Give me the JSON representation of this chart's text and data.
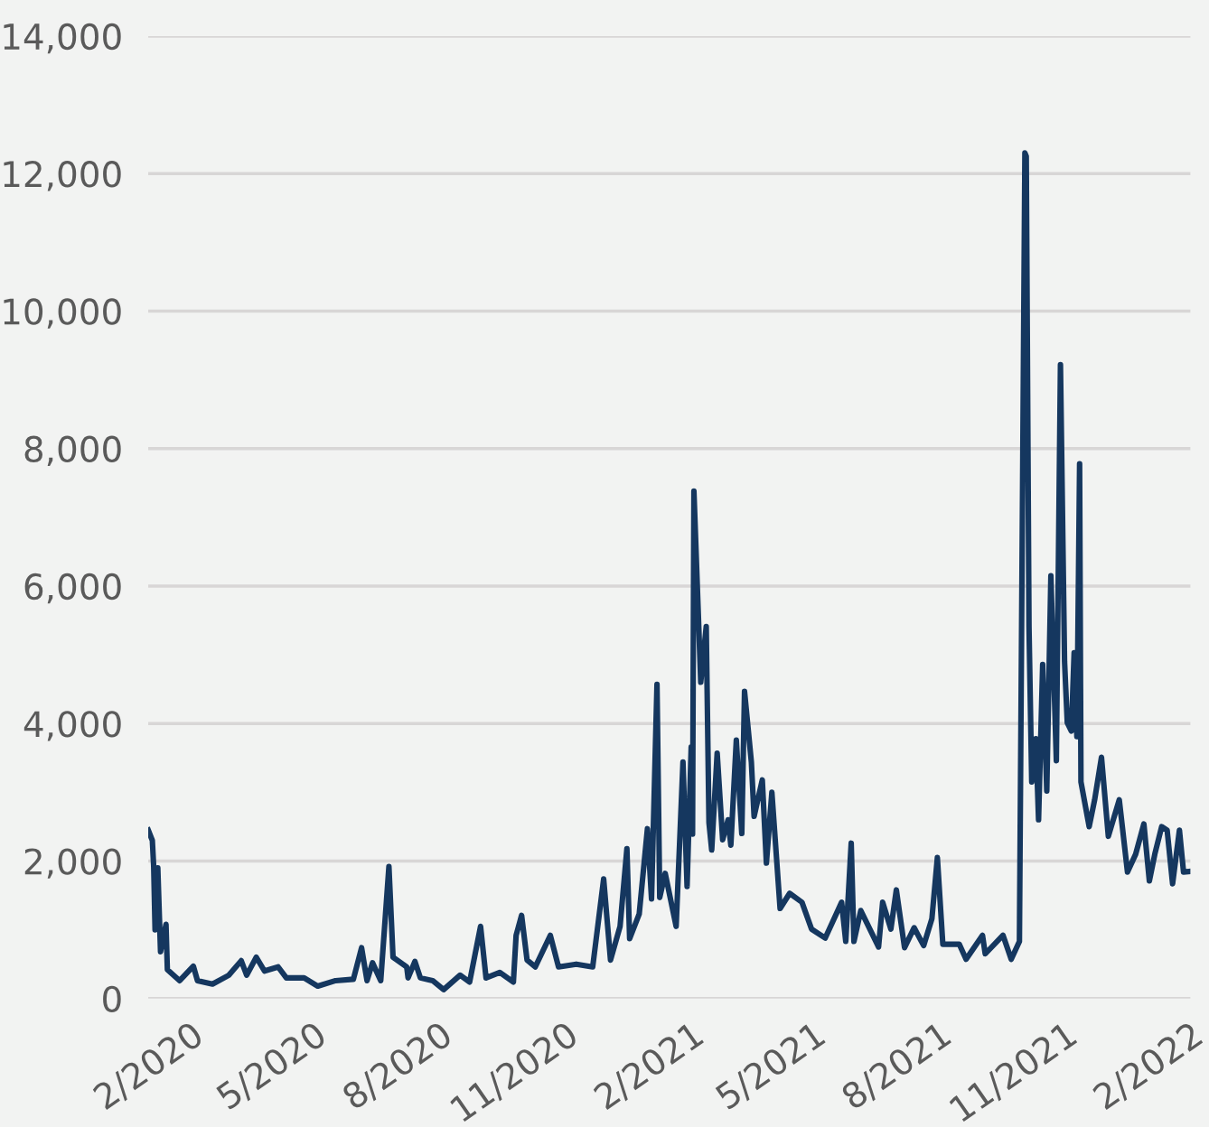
{
  "chart_data": {
    "type": "line",
    "x": [
      "2020-01-01",
      "2020-01-04",
      "2020-01-05",
      "2020-01-06",
      "2020-01-08",
      "2020-01-10",
      "2020-01-14",
      "2020-01-15",
      "2020-01-24",
      "2020-02-03",
      "2020-02-06",
      "2020-02-17",
      "2020-02-29",
      "2020-03-09",
      "2020-03-13",
      "2020-03-20",
      "2020-03-26",
      "2020-04-05",
      "2020-04-11",
      "2020-04-24",
      "2020-05-04",
      "2020-05-17",
      "2020-05-30",
      "2020-06-05",
      "2020-06-09",
      "2020-06-13",
      "2020-06-19",
      "2020-06-25",
      "2020-06-28",
      "2020-07-08",
      "2020-07-09",
      "2020-07-14",
      "2020-07-18",
      "2020-07-27",
      "2020-08-04",
      "2020-08-16",
      "2020-08-23",
      "2020-08-31",
      "2020-09-04",
      "2020-09-14",
      "2020-09-24",
      "2020-09-26",
      "2020-09-30",
      "2020-10-04",
      "2020-10-10",
      "2020-10-21",
      "2020-10-27",
      "2020-11-09",
      "2020-11-21",
      "2020-11-29",
      "2020-12-04",
      "2020-12-11",
      "2020-12-16",
      "2020-12-18",
      "2020-12-25",
      "2020-12-31",
      "2021-01-03",
      "2021-01-07",
      "2021-01-09",
      "2021-01-13",
      "2021-01-21",
      "2021-01-26",
      "2021-01-29",
      "2021-02-01",
      "2021-02-02",
      "2021-02-03",
      "2021-02-08",
      "2021-02-12",
      "2021-02-14",
      "2021-02-16",
      "2021-02-20",
      "2021-02-24",
      "2021-02-28",
      "2021-03-02",
      "2021-03-06",
      "2021-03-10",
      "2021-03-12",
      "2021-03-17",
      "2021-03-19",
      "2021-03-25",
      "2021-03-28",
      "2021-04-01",
      "2021-04-07",
      "2021-04-14",
      "2021-04-23",
      "2021-04-30",
      "2021-05-10",
      "2021-05-22",
      "2021-05-25",
      "2021-05-29",
      "2021-05-31",
      "2021-06-05",
      "2021-06-18",
      "2021-06-21",
      "2021-06-27",
      "2021-07-01",
      "2021-07-07",
      "2021-07-14",
      "2021-07-21",
      "2021-07-27",
      "2021-07-31",
      "2021-08-04",
      "2021-08-16",
      "2021-08-21",
      "2021-09-02",
      "2021-09-04",
      "2021-09-17",
      "2021-09-23",
      "2021-09-29",
      "2021-10-03",
      "2021-10-04",
      "2021-10-06",
      "2021-10-08",
      "2021-10-11",
      "2021-10-13",
      "2021-10-16",
      "2021-10-19",
      "2021-10-22",
      "2021-10-26",
      "2021-10-29",
      "2021-11-01",
      "2021-11-03",
      "2021-11-06",
      "2021-11-08",
      "2021-11-10",
      "2021-11-12",
      "2021-11-13",
      "2021-11-19",
      "2021-11-23",
      "2021-11-28",
      "2021-12-03",
      "2021-12-11",
      "2021-12-17",
      "2021-12-23",
      "2021-12-29",
      "2022-01-02",
      "2022-01-06",
      "2022-01-11",
      "2022-01-15",
      "2022-01-19",
      "2022-01-24",
      "2022-01-27",
      "2022-02-01"
    ],
    "series": [
      {
        "color": "#15375f",
        "values": [
          2450,
          2300,
          1920,
          1000,
          1900,
          680,
          1080,
          420,
          260,
          470,
          260,
          210,
          340,
          550,
          340,
          600,
          400,
          460,
          300,
          300,
          180,
          260,
          280,
          740,
          260,
          520,
          260,
          1920,
          600,
          460,
          300,
          540,
          300,
          260,
          130,
          340,
          240,
          1050,
          300,
          380,
          240,
          920,
          1210,
          560,
          460,
          920,
          460,
          500,
          460,
          1740,
          560,
          1050,
          2180,
          870,
          1230,
          2470,
          1450,
          4570,
          1470,
          1820,
          1050,
          3440,
          1630,
          3660,
          2390,
          7380,
          4600,
          5410,
          2560,
          2160,
          3570,
          2310,
          2600,
          2230,
          3760,
          2400,
          4470,
          3440,
          2650,
          3180,
          1970,
          3000,
          1310,
          1530,
          1400,
          1010,
          880,
          1400,
          830,
          2260,
          830,
          1280,
          750,
          1400,
          1010,
          1580,
          740,
          1030,
          770,
          1160,
          2050,
          790,
          790,
          570,
          920,
          650,
          920,
          570,
          830,
          12300,
          12250,
          5410,
          3150,
          3780,
          2600,
          4860,
          3020,
          6150,
          3460,
          9220,
          4900,
          4010,
          3890,
          5030,
          3810,
          7780,
          3150,
          2500,
          2890,
          3510,
          2360,
          2890,
          1840,
          2100,
          2540,
          1710,
          2100,
          2500,
          2450,
          1670,
          2450,
          1840,
          1850
        ]
      }
    ],
    "xlim": [
      "2020-01-01",
      "2022-02-01"
    ],
    "xticks": [
      {
        "value": "2020-02-01",
        "label": "2/2020"
      },
      {
        "value": "2020-05-01",
        "label": "5/2020"
      },
      {
        "value": "2020-08-01",
        "label": "8/2020"
      },
      {
        "value": "2020-11-01",
        "label": "11/2020"
      },
      {
        "value": "2021-02-01",
        "label": "2/2021"
      },
      {
        "value": "2021-05-01",
        "label": "5/2021"
      },
      {
        "value": "2021-08-01",
        "label": "8/2021"
      },
      {
        "value": "2021-11-01",
        "label": "11/2021"
      },
      {
        "value": "2022-02-01",
        "label": "2/2022"
      }
    ],
    "ylim": [
      0,
      14000
    ],
    "yticks": [
      0,
      {
        "value": 2000,
        "label": "2,000"
      },
      {
        "value": 4000,
        "label": "4,000"
      },
      {
        "value": 6000,
        "label": "6,000"
      },
      {
        "value": 8000,
        "label": "8,000"
      },
      {
        "value": 10000,
        "label": "10,000"
      },
      {
        "value": 12000,
        "label": "12,000"
      },
      {
        "value": 14000,
        "label": "14,000"
      }
    ],
    "grid": "y",
    "marker": "none",
    "line_style": "solid"
  }
}
